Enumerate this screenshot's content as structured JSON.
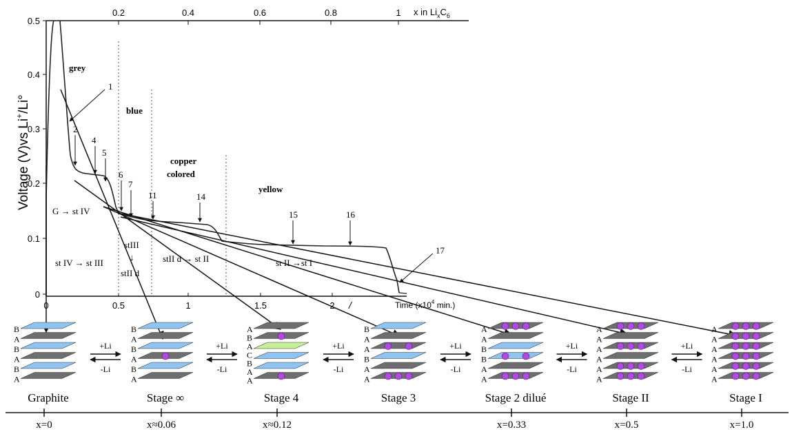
{
  "chart": {
    "y_axis_label": "Voltage (V)vs Li",
    "y_axis_label_sup": "+",
    "y_axis_label_tail": "/Li°",
    "y_ticks": [
      "0.5",
      "0.4",
      "0.3",
      "0.2",
      "0.1",
      "0"
    ],
    "x_bottom_ticks": [
      "0",
      "0.5",
      "1",
      "1.5",
      "2"
    ],
    "x_bottom_label": "Time (x10",
    "x_bottom_label_sup": "4",
    "x_bottom_label_tail": " min.)",
    "x_top_ticks": [
      "0.2",
      "0.4",
      "0.6",
      "0.8",
      "1"
    ],
    "x_top_label": "x in Li",
    "x_top_label_sub": "x",
    "x_top_label_tail": "C",
    "x_top_label_sub2": "6",
    "slash_mark": "/"
  },
  "colors": {
    "grey_layer": "#6e6e6e",
    "blue_layer": "#8fc3f0",
    "green_layer": "#c8ee9a",
    "lithium": "#b04be0",
    "curve": "#222222"
  },
  "regions": {
    "grey": "grey",
    "blue": "blue",
    "copper_1": "copper",
    "copper_2": "colored",
    "yellow": "yellow"
  },
  "points": [
    "1",
    "2",
    "4",
    "5",
    "6",
    "7",
    "11",
    "14",
    "15",
    "16",
    "17"
  ],
  "transitions": {
    "g_st4": "G → st IV",
    "st4_st3": "st IV → st III",
    "st3": "stIII",
    "st3_arrow": "↓",
    "st2d": "stII d",
    "st2d_st2": "stII d → st II",
    "st2_st1": "st II →st I"
  },
  "stages": [
    {
      "name": "Graphite",
      "x_value": "x=0",
      "letters": [
        "B",
        "A",
        "B",
        "A",
        "B",
        "A"
      ]
    },
    {
      "name": "Stage ∞",
      "x_value": "x≈0.06",
      "letters": [
        "B",
        "A",
        "B",
        "A",
        "B",
        "A"
      ]
    },
    {
      "name": "Stage 4",
      "x_value": "x≈0.12",
      "letters": [
        "A",
        "B",
        "A",
        "C",
        "B",
        "A",
        "A"
      ]
    },
    {
      "name": "Stage 3",
      "x_value": "",
      "letters": [
        "B",
        "A",
        "A",
        "B",
        "A",
        "A"
      ]
    },
    {
      "name": "Stage 2 dilué",
      "x_value": "x=0.33",
      "letters": [
        "A",
        "A",
        "B",
        "B",
        "A",
        "A"
      ]
    },
    {
      "name": "Stage II",
      "x_value": "x=0.5",
      "letters": [
        "A",
        "A",
        "A",
        "A",
        "A",
        "A"
      ]
    },
    {
      "name": "Stage I",
      "x_value": "x=1.0",
      "letters": [
        "A",
        "A",
        "A",
        "A",
        "A",
        "A"
      ]
    }
  ],
  "reaction": {
    "plus": "+Li",
    "minus": "-Li"
  }
}
